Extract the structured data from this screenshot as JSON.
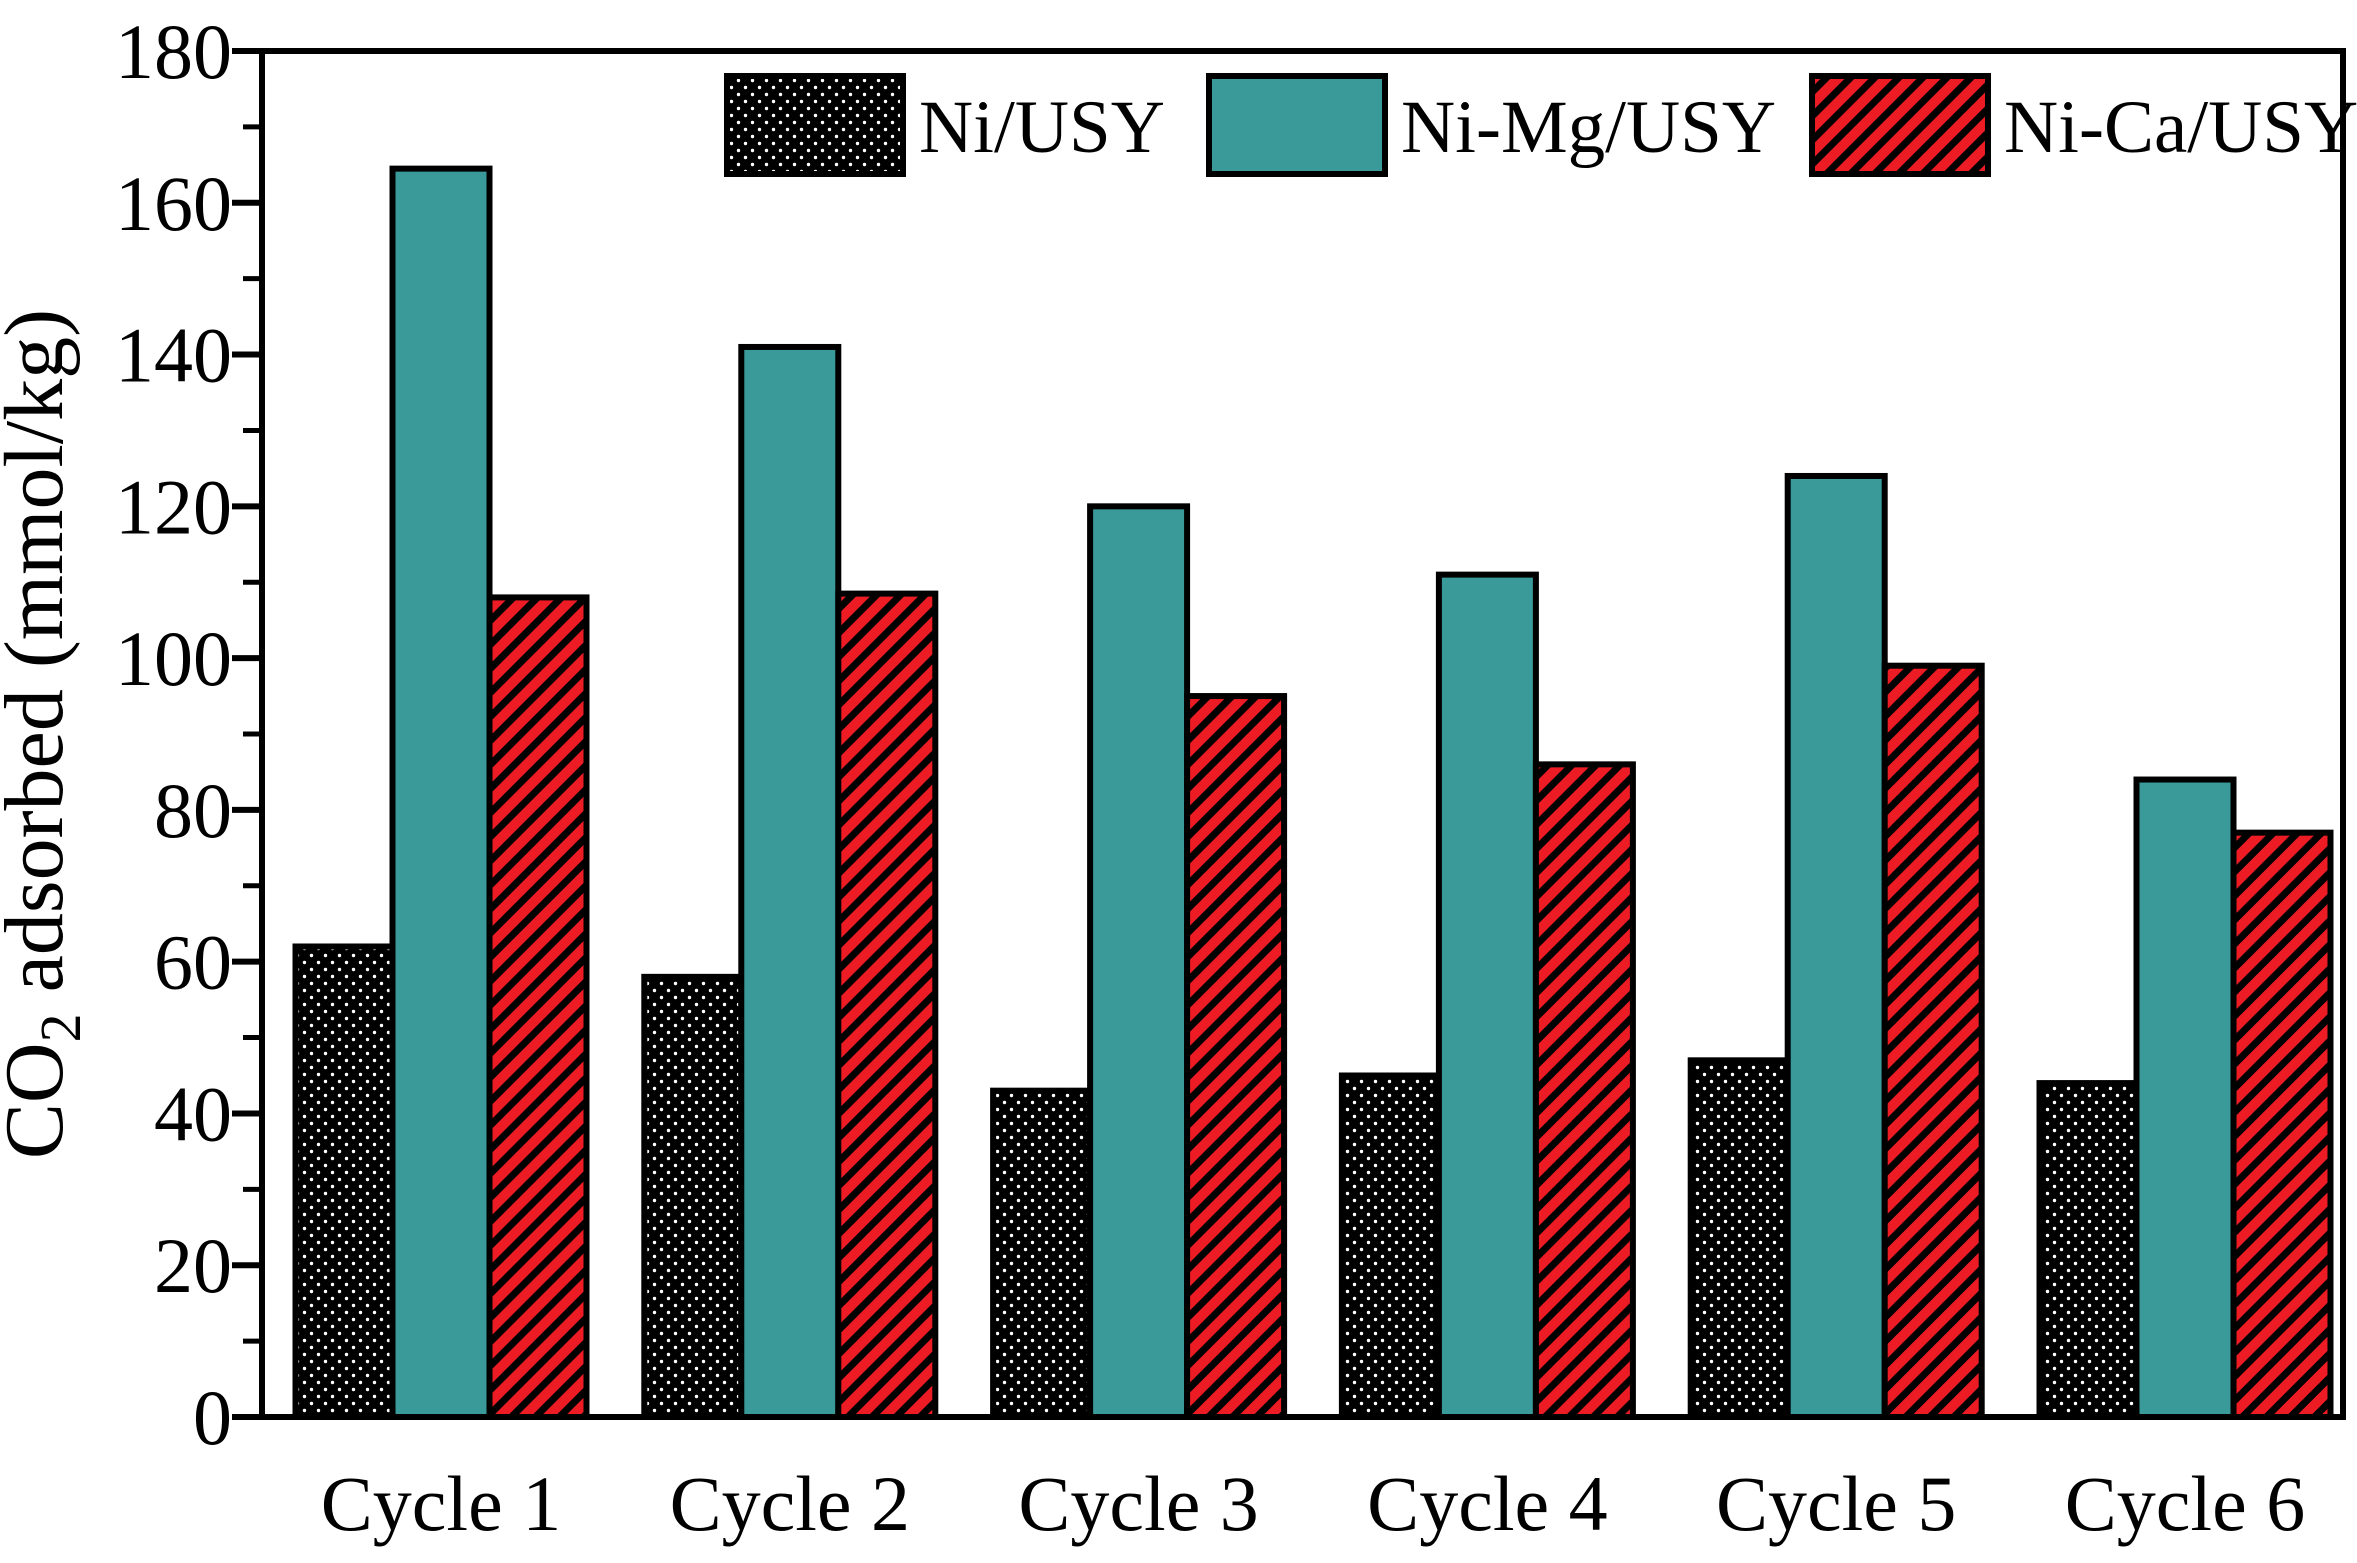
{
  "chart_data": {
    "type": "bar",
    "title": "",
    "categories": [
      "Cycle 1",
      "Cycle 2",
      "Cycle 3",
      "Cycle 4",
      "Cycle 5",
      "Cycle 6"
    ],
    "series": [
      {
        "name": "Ni/USY",
        "color": "#000000",
        "pattern": "white-dots-on-black",
        "values": [
          62,
          58,
          43,
          45,
          47,
          44
        ]
      },
      {
        "name": "Ni-Mg/USY",
        "color": "#3A9A9A",
        "pattern": "solid",
        "values": [
          164.5,
          141,
          120,
          111,
          124,
          84
        ]
      },
      {
        "name": "Ni-Ca/USY",
        "color": "#ED1C24",
        "pattern": "black-diagonal-hatch",
        "values": [
          108,
          108.5,
          95,
          86,
          99,
          77
        ]
      }
    ],
    "xlabel": "",
    "ylabel": "CO2 adsorbed (mmol/kg)",
    "ylabel_parts": {
      "prefix": "CO",
      "sub": "2",
      "suffix": " adsorbed (mmol/kg)"
    },
    "ylim": [
      0,
      180
    ],
    "yticks": [
      0,
      20,
      40,
      60,
      80,
      100,
      120,
      140,
      160,
      180
    ],
    "minor_tick_step": 10,
    "grid": false,
    "frame": "full-box",
    "legend_position": "top-inside",
    "colors": {
      "axis": "#000000",
      "bar_border": "#000000",
      "background": "#FFFFFF"
    }
  }
}
